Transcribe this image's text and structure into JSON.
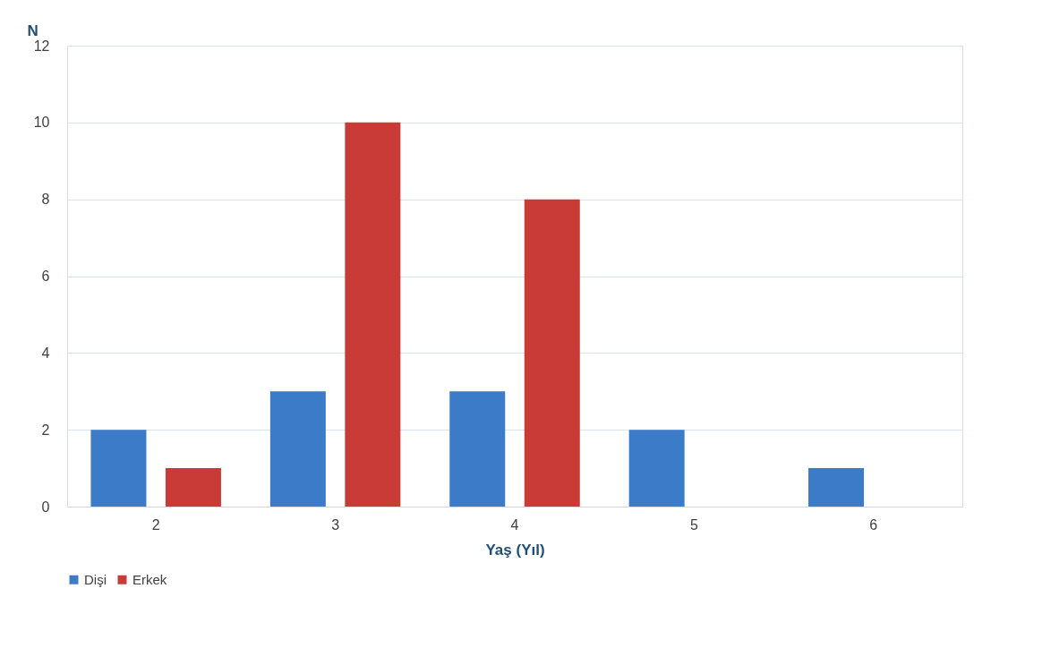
{
  "chart_data": {
    "type": "bar",
    "xlabel": "Yaş (Yıl)",
    "ylabel": "N",
    "categories": [
      "2",
      "3",
      "4",
      "5",
      "6"
    ],
    "series": [
      {
        "name": "Dişi",
        "color": "#3b7bc8",
        "values": [
          2,
          3,
          3,
          2,
          1
        ]
      },
      {
        "name": "Erkek",
        "color": "#c83b37",
        "values": [
          1,
          10,
          8,
          null,
          null
        ]
      }
    ],
    "ylim": [
      0,
      12
    ],
    "yticks": [
      0,
      2,
      4,
      6,
      8,
      10,
      12
    ],
    "grid": "y",
    "legend": "bottom"
  }
}
